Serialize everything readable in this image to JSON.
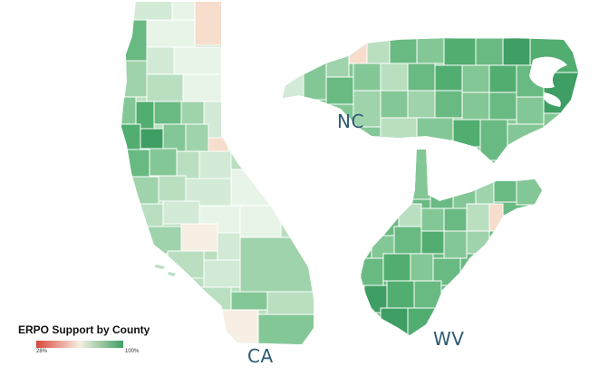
{
  "legend": {
    "title": "ERPO Support by County",
    "min_label": "28%",
    "max_label": "100%",
    "low_color": "#d9473a",
    "mid_color": "#f7efe3",
    "high_color": "#3f9e63"
  },
  "states": {
    "ca": {
      "label": "CA"
    },
    "nc": {
      "label": "NC"
    },
    "wv": {
      "label": "WV"
    }
  },
  "palette": {
    "outline": "#ffffff",
    "county_shades": [
      "#e9f4e9",
      "#d2ead6",
      "#b9dfc0",
      "#9fd3ab",
      "#84c796",
      "#69ba82",
      "#52ad70",
      "#3f9e63"
    ],
    "low_support_shade": "#f6ddcc",
    "water": "#ffffff"
  }
}
